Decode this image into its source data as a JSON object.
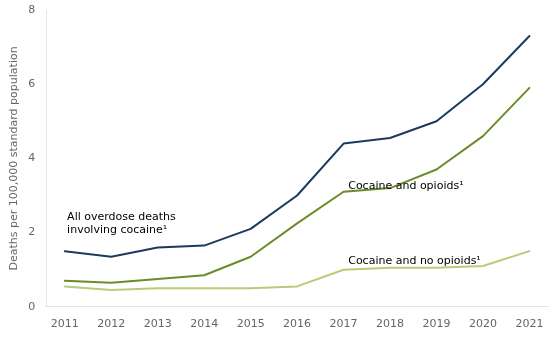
{
  "chart_data": {
    "type": "line",
    "ylabel": "Deaths per 100,000 standard population",
    "x": [
      2011,
      2012,
      2013,
      2014,
      2015,
      2016,
      2017,
      2018,
      2019,
      2020,
      2021
    ],
    "series": [
      {
        "name": "All overdose deaths\ninvolving cocaine¹",
        "color": "#1b3a5e",
        "values": [
          1.5,
          1.35,
          1.6,
          1.65,
          2.1,
          3.0,
          4.4,
          4.55,
          5.0,
          6.0,
          7.3
        ]
      },
      {
        "name": "Cocaine and opioids¹",
        "color": "#6b8c2a",
        "values": [
          0.7,
          0.65,
          0.75,
          0.85,
          1.35,
          2.25,
          3.1,
          3.2,
          3.7,
          4.6,
          5.9
        ]
      },
      {
        "name": "Cocaine and no opioids¹",
        "color": "#b5cc7a",
        "values": [
          0.55,
          0.45,
          0.5,
          0.5,
          0.5,
          0.55,
          1.0,
          1.05,
          1.05,
          1.1,
          1.5
        ]
      }
    ],
    "annotations": [
      {
        "text": "All overdose deaths\ninvolving cocaine¹",
        "x": 2011.05,
        "y": 2.25
      },
      {
        "text": "Cocaine and opioids¹",
        "x": 2017.1,
        "y": 3.25
      },
      {
        "text": "Cocaine and no opioids¹",
        "x": 2017.1,
        "y": 1.22
      }
    ],
    "xlim": [
      2010.6,
      2021.4
    ],
    "xticks": [
      2011,
      2012,
      2013,
      2014,
      2015,
      2016,
      2017,
      2018,
      2019,
      2020,
      2021
    ],
    "ylim": [
      0,
      8
    ],
    "yticks": [
      0,
      2,
      4,
      6,
      8
    ],
    "grid": false,
    "legend": false
  }
}
